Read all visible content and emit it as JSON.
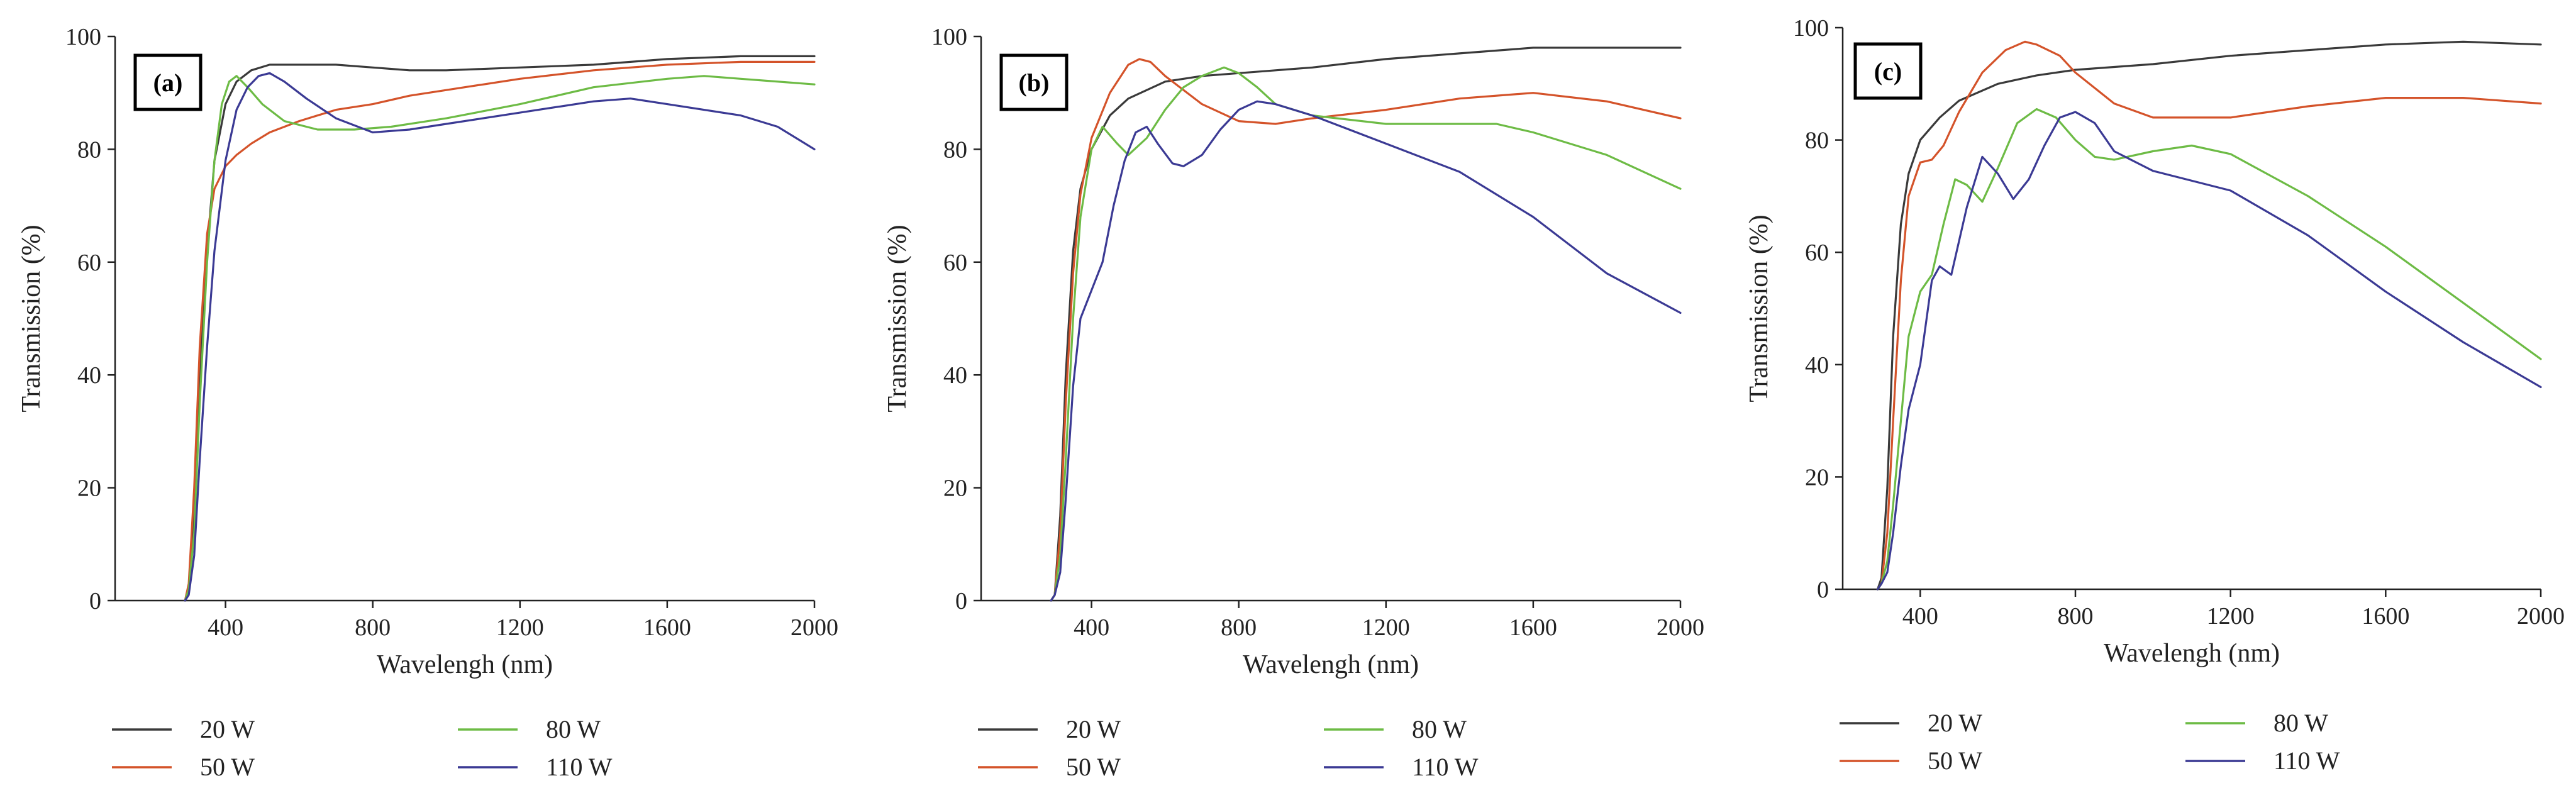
{
  "colors": {
    "20 W": "#3a3a3a",
    "50 W": "#d4532a",
    "80 W": "#6dbb45",
    "110 W": "#3b3a94"
  },
  "chart_data": [
    {
      "type": "line",
      "panel": "(a)",
      "xlabel": "Wavelengh (nm)",
      "ylabel": "Transmission (%)",
      "xlim": [
        100,
        2000
      ],
      "ylim": [
        0,
        100
      ],
      "xticks": [
        400,
        800,
        1200,
        1600,
        2000
      ],
      "yticks": [
        0,
        20,
        40,
        60,
        80,
        100
      ],
      "grid": false,
      "legend_position": "bottom",
      "series": [
        {
          "name": "20 W",
          "x": [
            290,
            300,
            315,
            330,
            350,
            370,
            400,
            430,
            470,
            520,
            600,
            700,
            800,
            900,
            1000,
            1200,
            1400,
            1600,
            1800,
            2000
          ],
          "y": [
            0,
            2,
            15,
            40,
            62,
            78,
            88,
            92,
            94,
            95,
            95,
            95,
            94.5,
            94,
            94,
            94.5,
            95,
            96,
            96.5,
            96.5
          ]
        },
        {
          "name": "50 W",
          "x": [
            290,
            300,
            315,
            330,
            350,
            370,
            400,
            430,
            470,
            520,
            600,
            700,
            800,
            900,
            1000,
            1200,
            1400,
            1600,
            1800,
            2000
          ],
          "y": [
            0,
            3,
            20,
            45,
            65,
            73,
            77,
            79,
            81,
            83,
            85,
            87,
            88,
            89.5,
            90.5,
            92.5,
            94,
            95,
            95.5,
            95.5
          ]
        },
        {
          "name": "80 W",
          "x": [
            290,
            300,
            315,
            330,
            350,
            370,
            390,
            410,
            430,
            460,
            500,
            560,
            650,
            750,
            850,
            1000,
            1200,
            1400,
            1600,
            1700,
            1800,
            2000
          ],
          "y": [
            0,
            2,
            12,
            35,
            60,
            78,
            88,
            92,
            93,
            91,
            88,
            85,
            83.5,
            83.5,
            84,
            85.5,
            88,
            91,
            92.5,
            93,
            92.5,
            91.5
          ]
        },
        {
          "name": "110 W",
          "x": [
            290,
            300,
            315,
            330,
            350,
            370,
            400,
            430,
            460,
            490,
            520,
            560,
            620,
            700,
            800,
            900,
            1000,
            1200,
            1400,
            1500,
            1600,
            1800,
            1900,
            2000
          ],
          "y": [
            0,
            1,
            8,
            25,
            45,
            62,
            78,
            87,
            91,
            93,
            93.5,
            92,
            89,
            85.5,
            83,
            83.5,
            84.5,
            86.5,
            88.5,
            89,
            88,
            86,
            84,
            80
          ]
        }
      ]
    },
    {
      "type": "line",
      "panel": "(b)",
      "xlabel": "Wavelengh (nm)",
      "ylabel": "Transmission (%)",
      "xlim": [
        100,
        2000
      ],
      "ylim": [
        0,
        100
      ],
      "xticks": [
        400,
        800,
        1200,
        1600,
        2000
      ],
      "yticks": [
        0,
        20,
        40,
        60,
        80,
        100
      ],
      "grid": false,
      "legend_position": "bottom",
      "series": [
        {
          "name": "20 W",
          "x": [
            290,
            300,
            315,
            330,
            350,
            370,
            400,
            450,
            500,
            600,
            700,
            800,
            900,
            1000,
            1200,
            1400,
            1600,
            1800,
            2000
          ],
          "y": [
            0,
            1,
            15,
            40,
            62,
            73,
            80,
            86,
            89,
            92,
            93,
            93.5,
            94,
            94.5,
            96,
            97,
            98,
            98,
            98
          ]
        },
        {
          "name": "50 W",
          "x": [
            290,
            300,
            315,
            330,
            350,
            370,
            400,
            450,
            500,
            530,
            560,
            600,
            700,
            800,
            900,
            1000,
            1200,
            1400,
            1600,
            1800,
            2000
          ],
          "y": [
            0,
            1,
            12,
            35,
            58,
            72,
            82,
            90,
            95,
            96,
            95.5,
            93,
            88,
            85,
            84.5,
            85.5,
            87,
            89,
            90,
            88.5,
            85.5
          ]
        },
        {
          "name": "80 W",
          "x": [
            290,
            300,
            315,
            330,
            350,
            370,
            400,
            430,
            470,
            500,
            550,
            600,
            650,
            700,
            760,
            800,
            850,
            900,
            1000,
            1200,
            1400,
            1500,
            1600,
            1800,
            2000
          ],
          "y": [
            0,
            1,
            8,
            25,
            50,
            68,
            80,
            84,
            81,
            79,
            82,
            87,
            91,
            93,
            94.5,
            93.5,
            91,
            88,
            86,
            84.5,
            84.5,
            84.5,
            83,
            79,
            73
          ]
        },
        {
          "name": "110 W",
          "x": [
            290,
            300,
            315,
            330,
            350,
            370,
            400,
            430,
            460,
            490,
            520,
            550,
            580,
            620,
            650,
            700,
            750,
            800,
            850,
            900,
            1000,
            1200,
            1400,
            1600,
            1800,
            2000
          ],
          "y": [
            0,
            1,
            5,
            18,
            38,
            50,
            55,
            60,
            70,
            78,
            83,
            84,
            81,
            77.5,
            77,
            79,
            83.5,
            87,
            88.5,
            88,
            86,
            81,
            76,
            68,
            58,
            51
          ]
        }
      ]
    },
    {
      "type": "line",
      "panel": "(c)",
      "xlabel": "Wavelengh (nm)",
      "ylabel": "Transmission (%)",
      "xlim": [
        200,
        2000
      ],
      "ylim": [
        0,
        100
      ],
      "xticks": [
        400,
        800,
        1200,
        1600,
        2000
      ],
      "yticks": [
        0,
        20,
        40,
        60,
        80,
        100
      ],
      "grid": false,
      "legend_position": "bottom",
      "series": [
        {
          "name": "20 W",
          "x": [
            290,
            300,
            315,
            330,
            350,
            370,
            400,
            450,
            500,
            600,
            700,
            800,
            900,
            1000,
            1200,
            1400,
            1600,
            1800,
            2000
          ],
          "y": [
            0,
            2,
            18,
            45,
            65,
            74,
            80,
            84,
            87,
            90,
            91.5,
            92.5,
            93,
            93.5,
            95,
            96,
            97,
            97.5,
            97
          ]
        },
        {
          "name": "50 W",
          "x": [
            290,
            300,
            315,
            330,
            350,
            370,
            400,
            430,
            460,
            500,
            560,
            620,
            670,
            700,
            760,
            800,
            900,
            1000,
            1200,
            1400,
            1600,
            1800,
            2000
          ],
          "y": [
            0,
            1,
            10,
            30,
            55,
            70,
            76,
            76.5,
            79,
            85,
            92,
            96,
            97.5,
            97,
            95,
            92,
            86.5,
            84,
            84,
            86,
            87.5,
            87.5,
            86.5
          ]
        },
        {
          "name": "80 W",
          "x": [
            290,
            300,
            315,
            330,
            350,
            370,
            400,
            430,
            460,
            490,
            520,
            560,
            600,
            650,
            700,
            750,
            800,
            850,
            900,
            1000,
            1100,
            1200,
            1400,
            1600,
            1800,
            2000
          ],
          "y": [
            0,
            1,
            5,
            15,
            30,
            45,
            53,
            56,
            65,
            73,
            72,
            69,
            75,
            83,
            85.5,
            84,
            80,
            77,
            76.5,
            78,
            79,
            77.5,
            70,
            61,
            51,
            41
          ]
        },
        {
          "name": "110 W",
          "x": [
            290,
            300,
            315,
            330,
            350,
            370,
            400,
            430,
            450,
            480,
            520,
            560,
            600,
            640,
            680,
            720,
            760,
            800,
            850,
            900,
            1000,
            1200,
            1400,
            1600,
            1800,
            2000
          ],
          "y": [
            0,
            1,
            3,
            10,
            22,
            32,
            40,
            55,
            57.5,
            56,
            68,
            77,
            74,
            69.5,
            73,
            79,
            84,
            85,
            83,
            78,
            74.5,
            71,
            63,
            53,
            44,
            36
          ]
        }
      ]
    }
  ]
}
